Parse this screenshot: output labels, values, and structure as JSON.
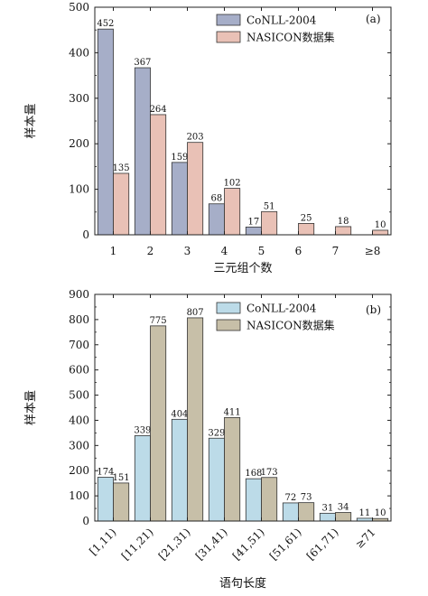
{
  "chart_data": [
    {
      "type": "bar",
      "panel_label": "(a)",
      "xlabel": "三元组个数",
      "ylabel": "样本量",
      "ylim": [
        0,
        500
      ],
      "yticks": [
        0,
        100,
        200,
        300,
        400,
        500
      ],
      "grid": false,
      "legend_position": "top-right",
      "categories": [
        "1",
        "2",
        "3",
        "4",
        "5",
        "6",
        "7",
        "≥8"
      ],
      "series": [
        {
          "name": "CoNLL-2004",
          "color": "#a6aec8",
          "values": [
            452,
            367,
            159,
            68,
            17,
            null,
            null,
            null
          ],
          "labels": [
            "452",
            "367",
            "159",
            "68",
            "17",
            "",
            "",
            ""
          ]
        },
        {
          "name": "NASICON数据集",
          "color": "#e9c1b6",
          "values": [
            135,
            264,
            203,
            102,
            51,
            25,
            18,
            10
          ],
          "labels": [
            "135",
            "264",
            "203",
            "102",
            "51",
            "25",
            "18",
            "10"
          ]
        }
      ]
    },
    {
      "type": "bar",
      "panel_label": "(b)",
      "xlabel": "语句长度",
      "ylabel": "样本量",
      "ylim": [
        0,
        900
      ],
      "yticks": [
        0,
        100,
        200,
        300,
        400,
        500,
        600,
        700,
        800,
        900
      ],
      "grid": false,
      "legend_position": "top-right",
      "categories": [
        "[1,11)",
        "[11,21)",
        "[21,31)",
        "[31,41)",
        "[41,51)",
        "[51,61)",
        "[61,71)",
        "≥71"
      ],
      "series": [
        {
          "name": "CoNLL-2004",
          "color": "#bcdbe8",
          "values": [
            174,
            339,
            404,
            329,
            168,
            72,
            31,
            11
          ],
          "labels": [
            "174",
            "339",
            "404",
            "329",
            "168",
            "72",
            "31",
            "11"
          ]
        },
        {
          "name": "NASICON数据集",
          "color": "#c7bfa8",
          "values": [
            151,
            775,
            807,
            411,
            173,
            73,
            34,
            10
          ],
          "labels": [
            "151",
            "775",
            "807",
            "411",
            "173",
            "73",
            "34",
            "10"
          ]
        }
      ]
    }
  ]
}
